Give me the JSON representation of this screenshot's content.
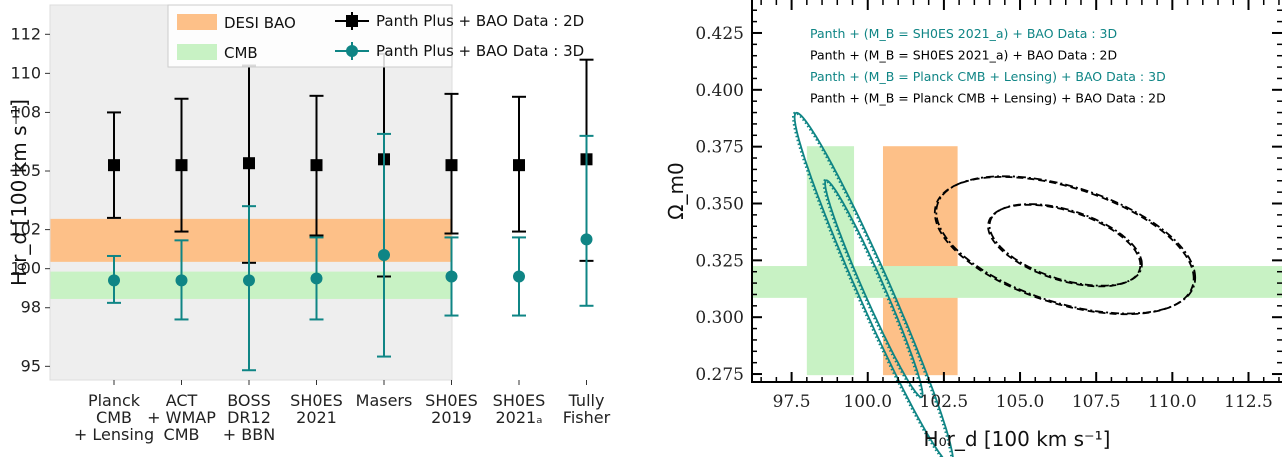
{
  "chart_data": [
    {
      "type": "errorbar",
      "ylabel": "H₀r_d [100 km s⁻¹]",
      "ylim": [
        94.3,
        113.5
      ],
      "yticks": [
        "95",
        "98",
        "100",
        "102",
        "105",
        "108",
        "110",
        "112"
      ],
      "categories": [
        [
          "Planck",
          "CMB",
          "+ Lensing"
        ],
        [
          "ACT",
          "+ WMAP",
          "CMB"
        ],
        [
          "BOSS",
          "DR12",
          "+ BBN"
        ],
        [
          "SH0ES",
          "2021"
        ],
        [
          "Masers"
        ],
        [
          "SH0ES",
          "2019"
        ],
        [
          "SH0ES",
          "2021ₐ"
        ],
        [
          "Tully",
          "Fisher"
        ]
      ],
      "bands": [
        {
          "name": "DESI BAO",
          "range": [
            100.35,
            102.55
          ],
          "color": "#fdc088"
        },
        {
          "name": "CMB",
          "range": [
            98.45,
            99.85
          ],
          "color": "#c8f2c4"
        }
      ],
      "series": [
        {
          "name": "Panth Plus + BAO Data : 2D",
          "color": "#000000",
          "marker": "square",
          "values": [
            105.3,
            105.3,
            105.4,
            105.3,
            105.6,
            105.3,
            105.3,
            105.6
          ],
          "lower": [
            102.6,
            101.9,
            100.3,
            101.7,
            99.6,
            101.8,
            101.9,
            100.4
          ],
          "upper": [
            108.0,
            108.7,
            110.4,
            108.85,
            111.0,
            108.95,
            108.8,
            110.7
          ]
        },
        {
          "name": "Panth Plus + BAO Data : 3D",
          "color": "#0f8585",
          "marker": "circle",
          "values": [
            99.4,
            99.4,
            99.4,
            99.5,
            100.7,
            99.6,
            99.6,
            101.5
          ],
          "lower": [
            98.25,
            97.4,
            94.8,
            97.4,
            95.5,
            97.6,
            97.6,
            98.1
          ],
          "upper": [
            100.65,
            101.45,
            103.2,
            101.6,
            106.9,
            101.6,
            101.6,
            106.8
          ]
        }
      ],
      "legend": "top-right"
    },
    {
      "type": "contour",
      "xlabel": "H₀r_d [100 km s⁻¹]",
      "ylabel": "Ω_m0",
      "xlim": [
        96.2,
        113.6
      ],
      "ylim": [
        0.2715,
        0.4395
      ],
      "xticks": [
        "97.5",
        "100.0",
        "102.5",
        "105.0",
        "107.5",
        "110.0",
        "112.5"
      ],
      "yticks": [
        "0.275",
        "0.300",
        "0.325",
        "0.350",
        "0.375",
        "0.400",
        "0.425"
      ],
      "bands": [
        {
          "axis": "x",
          "range": [
            98.0,
            99.55
          ],
          "ylim": [
            0.2745,
            0.3752
          ],
          "color": "#c8f2c4"
        },
        {
          "axis": "x",
          "range": [
            100.5,
            102.95
          ],
          "ylim": [
            0.2745,
            0.3752
          ],
          "color": "#fdc088"
        },
        {
          "axis": "y",
          "range": [
            0.3085,
            0.3225
          ],
          "color": "#c8f2c4"
        }
      ],
      "contours": [
        {
          "name": "Panth + (M_B = SH0ES 2021_a) + BAO Data : 3D",
          "color": "#0f8585",
          "style": "dotted",
          "center": [
            100.15,
            0.3125
          ],
          "levels": [
            {
              "a": 1.6,
              "b": 0.011
            },
            {
              "a": 2.6,
              "b": 0.0175
            }
          ],
          "angle": 0.029
        },
        {
          "name": "Panth + (M_B = SH0ES 2021_a) + BAO Data : 2D",
          "color": "#000000",
          "style": "dashed",
          "center": [
            106.45,
            0.3315
          ],
          "levels": [
            {
              "a": 2.5,
              "b": 0.0158
            },
            {
              "a": 4.25,
              "b": 0.0265
            }
          ],
          "angle": 0.0034
        },
        {
          "name": "Panth + (M_B = Planck CMB + Lensing) + BAO Data : 3D",
          "color": "#0f8585",
          "style": "solid",
          "center": [
            100.2,
            0.3125
          ],
          "levels": [
            {
              "a": 1.6,
              "b": 0.011
            },
            {
              "a": 2.6,
              "b": 0.0175
            }
          ],
          "angle": 0.029
        },
        {
          "name": "Panth + (M_B = Planck CMB + Lensing) + BAO Data : 2D",
          "color": "#000000",
          "style": "dashdot",
          "center": [
            106.5,
            0.3318
          ],
          "levels": [
            {
              "a": 2.5,
              "b": 0.0158
            },
            {
              "a": 4.25,
              "b": 0.0265
            }
          ],
          "angle": 0.0034
        }
      ],
      "legend": "top-center"
    }
  ]
}
